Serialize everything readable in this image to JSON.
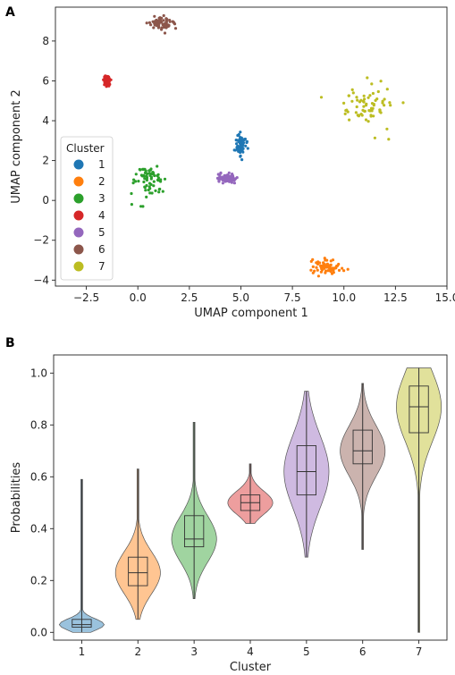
{
  "chart_data": [
    {
      "type": "scatter",
      "panel_label": "A",
      "xlabel": "UMAP component 1",
      "ylabel": "UMAP component 2",
      "xlim": [
        -4,
        15
      ],
      "ylim": [
        -4.3,
        9.7
      ],
      "xticks": [
        "−2.5",
        "0.0",
        "2.5",
        "5.0",
        "7.5",
        "10.0",
        "12.5",
        "15.0"
      ],
      "xtick_values": [
        -2.5,
        0,
        2.5,
        5,
        7.5,
        10,
        12.5,
        15
      ],
      "yticks": [
        "−4",
        "−2",
        "0",
        "2",
        "4",
        "6",
        "8"
      ],
      "ytick_values": [
        -4,
        -2,
        0,
        2,
        4,
        6,
        8
      ],
      "legend": {
        "title": "Cluster",
        "position": "center-left",
        "labels": [
          "1",
          "2",
          "3",
          "4",
          "5",
          "6",
          "7"
        ]
      },
      "series": [
        {
          "name": "1",
          "color": "#1f77b4",
          "center": [
            5.0,
            2.8
          ],
          "spread": [
            0.2,
            0.5
          ]
        },
        {
          "name": "2",
          "color": "#ff7f0e",
          "center": [
            9.2,
            -3.3
          ],
          "spread": [
            0.6,
            0.3
          ]
        },
        {
          "name": "3",
          "color": "#2ca02c",
          "center": [
            0.5,
            1.0
          ],
          "spread": [
            0.7,
            0.7
          ]
        },
        {
          "name": "4",
          "color": "#d62728",
          "center": [
            -1.5,
            6.0
          ],
          "spread": [
            0.12,
            0.2
          ]
        },
        {
          "name": "5",
          "color": "#9467bd",
          "center": [
            4.3,
            1.1
          ],
          "spread": [
            0.4,
            0.2
          ]
        },
        {
          "name": "6",
          "color": "#8c564b",
          "center": [
            1.1,
            8.9
          ],
          "spread": [
            0.5,
            0.25
          ]
        },
        {
          "name": "7",
          "color": "#bcbd22",
          "center": [
            11.2,
            4.8
          ],
          "spread": [
            1.1,
            0.9
          ]
        }
      ]
    },
    {
      "type": "violin",
      "panel_label": "B",
      "xlabel": "Cluster",
      "ylabel": "Probabilities",
      "ylim": [
        -0.03,
        1.07
      ],
      "yticks": [
        "0.0",
        "0.2",
        "0.4",
        "0.6",
        "0.8",
        "1.0"
      ],
      "ytick_values": [
        0,
        0.2,
        0.4,
        0.6,
        0.8,
        1.0
      ],
      "categories": [
        "1",
        "2",
        "3",
        "4",
        "5",
        "6",
        "7"
      ],
      "series": [
        {
          "name": "1",
          "color": "#1f77b4",
          "min": 0.0,
          "q1": 0.02,
          "median": 0.03,
          "q3": 0.05,
          "max": 0.59
        },
        {
          "name": "2",
          "color": "#ff7f0e",
          "min": 0.05,
          "q1": 0.18,
          "median": 0.23,
          "q3": 0.29,
          "max": 0.63
        },
        {
          "name": "3",
          "color": "#2ca02c",
          "min": 0.13,
          "q1": 0.33,
          "median": 0.36,
          "q3": 0.45,
          "max": 0.81
        },
        {
          "name": "4",
          "color": "#d62728",
          "min": 0.42,
          "q1": 0.47,
          "median": 0.5,
          "q3": 0.53,
          "max": 0.65
        },
        {
          "name": "5",
          "color": "#9467bd",
          "min": 0.29,
          "q1": 0.53,
          "median": 0.62,
          "q3": 0.72,
          "max": 0.93
        },
        {
          "name": "6",
          "color": "#8c564b",
          "min": 0.32,
          "q1": 0.65,
          "median": 0.7,
          "q3": 0.78,
          "max": 0.96
        },
        {
          "name": "7",
          "color": "#bcbd22",
          "min": 0.0,
          "q1": 0.77,
          "median": 0.87,
          "q3": 0.95,
          "max": 1.02
        }
      ]
    }
  ]
}
